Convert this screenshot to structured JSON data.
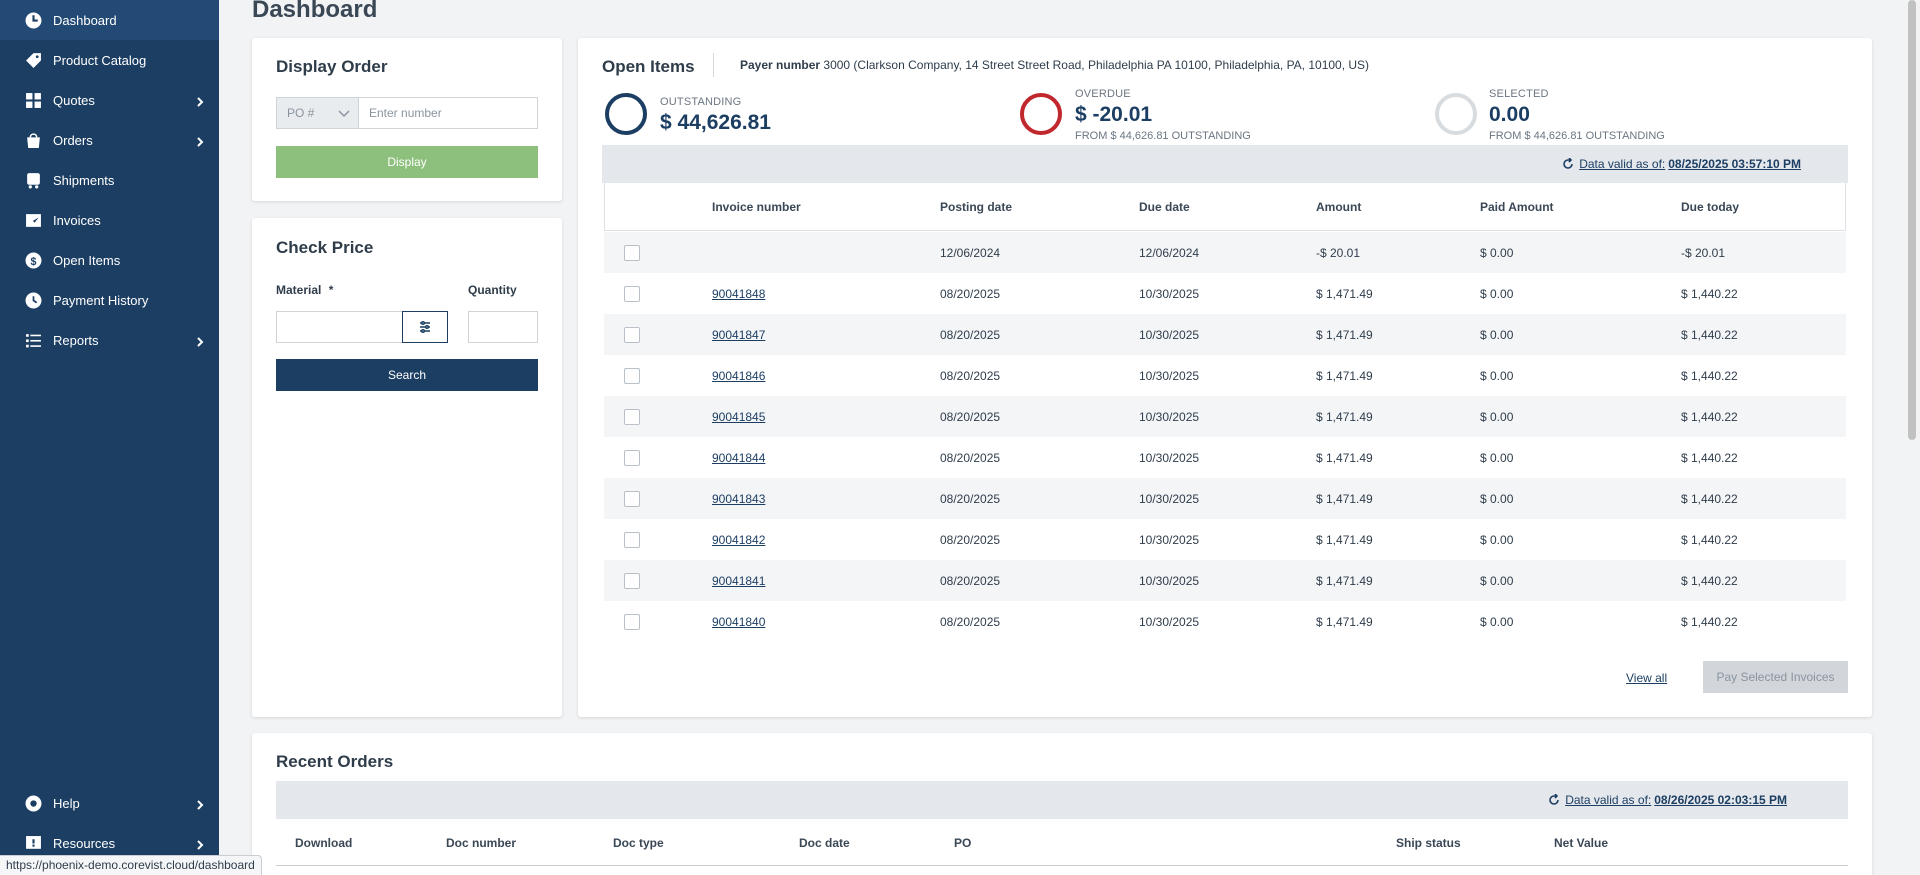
{
  "sidebar": {
    "items": [
      {
        "label": "Dashboard",
        "icon": "dashboard-icon",
        "chevron": false
      },
      {
        "label": "Product Catalog",
        "icon": "tag-icon",
        "chevron": false
      },
      {
        "label": "Quotes",
        "icon": "quotes-icon",
        "chevron": true
      },
      {
        "label": "Orders",
        "icon": "bag-icon",
        "chevron": true
      },
      {
        "label": "Shipments",
        "icon": "truck-icon",
        "chevron": false
      },
      {
        "label": "Invoices",
        "icon": "invoice-icon",
        "chevron": false
      },
      {
        "label": "Open Items",
        "icon": "dollar-icon",
        "chevron": false
      },
      {
        "label": "Payment History",
        "icon": "history-icon",
        "chevron": false
      },
      {
        "label": "Reports",
        "icon": "list-icon",
        "chevron": true
      }
    ],
    "bottom": [
      {
        "label": "Help",
        "icon": "help-icon",
        "chevron": true
      },
      {
        "label": "Resources",
        "icon": "resources-icon",
        "chevron": true
      }
    ]
  },
  "page": {
    "title": "Dashboard"
  },
  "display_order": {
    "title": "Display Order",
    "po_select": "PO #",
    "input_placeholder": "Enter number",
    "button": "Display"
  },
  "check_price": {
    "title": "Check Price",
    "material_label": "Material",
    "required_mark": "*",
    "quantity_label": "Quantity",
    "button": "Search"
  },
  "open_items": {
    "title": "Open Items",
    "payer_label": "Payer number",
    "payer_value": "3000 (Clarkson Company, 14 Street Street Road, Philadelphia PA  10100, Philadelphia, PA, 10100, US)",
    "stats": [
      {
        "label": "OUTSTANDING",
        "value": "$ 44,626.81",
        "sub": "",
        "color": "#1c3e63"
      },
      {
        "label": "OVERDUE",
        "value": "$ -20.01",
        "sub": "FROM $ 44,626.81 OUTSTANDING",
        "color": "#c0282e"
      },
      {
        "label": "SELECTED",
        "value": "0.00",
        "sub": "FROM $ 44,626.81 OUTSTANDING",
        "color": "#d9dcdf"
      }
    ],
    "valid_label": "Data valid as of:",
    "valid_date": "08/25/2025 03:57:10 PM",
    "columns": [
      "Invoice number",
      "Posting date",
      "Due date",
      "Amount",
      "Paid Amount",
      "Due today"
    ],
    "rows": [
      {
        "invoice": "",
        "posting": "12/06/2024",
        "due": "12/06/2024",
        "amount": "-$ 20.01",
        "paid": "$ 0.00",
        "due_today": "-$ 20.01"
      },
      {
        "invoice": "90041848",
        "posting": "08/20/2025",
        "due": "10/30/2025",
        "amount": "$ 1,471.49",
        "paid": "$ 0.00",
        "due_today": "$ 1,440.22"
      },
      {
        "invoice": "90041847",
        "posting": "08/20/2025",
        "due": "10/30/2025",
        "amount": "$ 1,471.49",
        "paid": "$ 0.00",
        "due_today": "$ 1,440.22"
      },
      {
        "invoice": "90041846",
        "posting": "08/20/2025",
        "due": "10/30/2025",
        "amount": "$ 1,471.49",
        "paid": "$ 0.00",
        "due_today": "$ 1,440.22"
      },
      {
        "invoice": "90041845",
        "posting": "08/20/2025",
        "due": "10/30/2025",
        "amount": "$ 1,471.49",
        "paid": "$ 0.00",
        "due_today": "$ 1,440.22"
      },
      {
        "invoice": "90041844",
        "posting": "08/20/2025",
        "due": "10/30/2025",
        "amount": "$ 1,471.49",
        "paid": "$ 0.00",
        "due_today": "$ 1,440.22"
      },
      {
        "invoice": "90041843",
        "posting": "08/20/2025",
        "due": "10/30/2025",
        "amount": "$ 1,471.49",
        "paid": "$ 0.00",
        "due_today": "$ 1,440.22"
      },
      {
        "invoice": "90041842",
        "posting": "08/20/2025",
        "due": "10/30/2025",
        "amount": "$ 1,471.49",
        "paid": "$ 0.00",
        "due_today": "$ 1,440.22"
      },
      {
        "invoice": "90041841",
        "posting": "08/20/2025",
        "due": "10/30/2025",
        "amount": "$ 1,471.49",
        "paid": "$ 0.00",
        "due_today": "$ 1,440.22"
      },
      {
        "invoice": "90041840",
        "posting": "08/20/2025",
        "due": "10/30/2025",
        "amount": "$ 1,471.49",
        "paid": "$ 0.00",
        "due_today": "$ 1,440.22"
      }
    ],
    "view_all": "View all",
    "pay_button": "Pay Selected Invoices"
  },
  "recent_orders": {
    "title": "Recent Orders",
    "valid_label": "Data valid as of:",
    "valid_date": "08/26/2025 02:03:15 PM",
    "columns": [
      "Download",
      "Doc number",
      "Doc type",
      "Doc date",
      "PO",
      "Ship status",
      "Net Value"
    ]
  },
  "status_bar": {
    "url": "https://phoenix-demo.corevist.cloud/dashboard"
  }
}
